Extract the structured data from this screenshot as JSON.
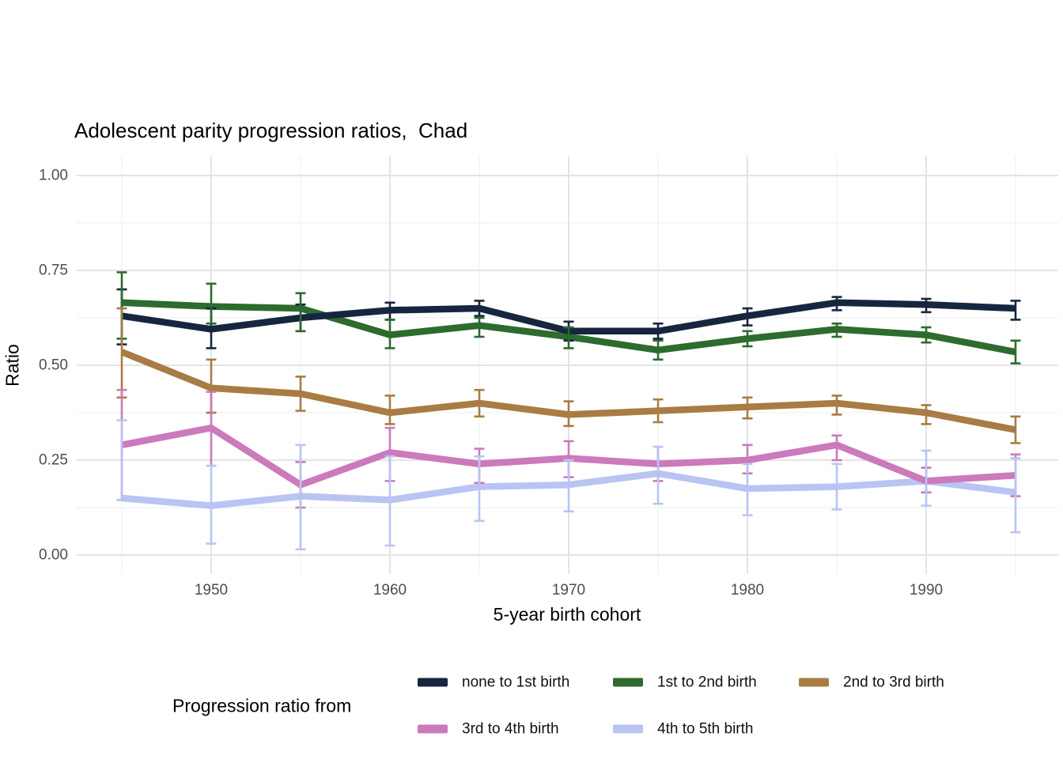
{
  "title": "Adolescent parity progression ratios,  Chad",
  "y_axis": {
    "label": "Ratio",
    "ticks": [
      {
        "label": "0.00",
        "value": 0
      },
      {
        "label": "0.25",
        "value": 0.25
      },
      {
        "label": "0.50",
        "value": 0.5
      },
      {
        "label": "0.75",
        "value": 0.75
      },
      {
        "label": "1.00",
        "value": 1
      }
    ]
  },
  "x_axis": {
    "label": "5-year birth cohort",
    "ticks": [
      {
        "label": "1950",
        "value": 1950
      },
      {
        "label": "1960",
        "value": 1960
      },
      {
        "label": "1970",
        "value": 1970
      },
      {
        "label": "1980",
        "value": 1980
      },
      {
        "label": "1990",
        "value": 1990
      }
    ]
  },
  "legend": {
    "title": "Progression ratio from"
  },
  "colors": {
    "none_to_1st": "#17263F",
    "first_to_2nd": "#2D6B2E",
    "second_to_3rd": "#A87C44",
    "third_to_4th": "#CB7ABB",
    "fourth_to_5th": "#B9C4F3",
    "grid_major": "#e4e4e4",
    "grid_minor": "#f0f0f0"
  },
  "chart_data": {
    "type": "line",
    "title": "Adolescent parity progression ratios,  Chad",
    "xlabel": "5-year birth cohort",
    "ylabel": "Ratio",
    "xlim": [
      1942.5,
      1997.5
    ],
    "ylim": [
      0,
      1
    ],
    "grid": true,
    "legend_position": "bottom",
    "error_bars": true,
    "x": [
      1945,
      1950,
      1955,
      1960,
      1965,
      1970,
      1975,
      1980,
      1985,
      1990,
      1995
    ],
    "x_minor_gridlines": [
      1945,
      1955,
      1965,
      1975,
      1985,
      1995
    ],
    "y_minor_gridlines": [
      0.125,
      0.375,
      0.625,
      0.875
    ],
    "series": [
      {
        "name": "none to 1st birth",
        "color": "#17263F",
        "values": [
          0.63,
          0.595,
          0.625,
          0.645,
          0.65,
          0.59,
          0.59,
          0.63,
          0.665,
          0.66,
          0.65
        ],
        "ci_low": [
          0.555,
          0.545,
          0.59,
          0.62,
          0.63,
          0.565,
          0.57,
          0.605,
          0.645,
          0.64,
          0.62
        ],
        "ci_high": [
          0.7,
          0.65,
          0.66,
          0.665,
          0.67,
          0.615,
          0.61,
          0.65,
          0.68,
          0.675,
          0.67
        ]
      },
      {
        "name": "1st to 2nd birth",
        "color": "#2D6B2E",
        "values": [
          0.665,
          0.655,
          0.65,
          0.58,
          0.605,
          0.575,
          0.54,
          0.57,
          0.595,
          0.58,
          0.535
        ],
        "ci_low": [
          0.57,
          0.61,
          0.59,
          0.545,
          0.575,
          0.545,
          0.515,
          0.55,
          0.575,
          0.56,
          0.505
        ],
        "ci_high": [
          0.745,
          0.715,
          0.69,
          0.62,
          0.625,
          0.6,
          0.565,
          0.59,
          0.61,
          0.6,
          0.565
        ]
      },
      {
        "name": "2nd to 3rd birth",
        "color": "#A87C44",
        "values": [
          0.535,
          0.44,
          0.425,
          0.375,
          0.4,
          0.37,
          0.38,
          0.39,
          0.4,
          0.375,
          0.33
        ],
        "ci_low": [
          0.415,
          0.375,
          0.38,
          0.345,
          0.365,
          0.34,
          0.35,
          0.36,
          0.37,
          0.345,
          0.295
        ],
        "ci_high": [
          0.65,
          0.515,
          0.47,
          0.42,
          0.435,
          0.405,
          0.41,
          0.415,
          0.42,
          0.395,
          0.365
        ]
      },
      {
        "name": "3rd to 4th birth",
        "color": "#CB7ABB",
        "values": [
          0.29,
          0.335,
          0.185,
          0.27,
          0.24,
          0.255,
          0.24,
          0.25,
          0.29,
          0.195,
          0.21
        ],
        "ci_low": [
          0.145,
          0.235,
          0.125,
          0.195,
          0.19,
          0.205,
          0.195,
          0.215,
          0.25,
          0.165,
          0.155
        ],
        "ci_high": [
          0.435,
          0.43,
          0.245,
          0.335,
          0.28,
          0.3,
          0.285,
          0.29,
          0.315,
          0.23,
          0.265
        ]
      },
      {
        "name": "4th to 5th birth",
        "color": "#B9C4F3",
        "values": [
          0.15,
          0.13,
          0.155,
          0.145,
          0.18,
          0.185,
          0.215,
          0.175,
          0.18,
          0.195,
          0.165
        ],
        "ci_low": [
          0.145,
          0.03,
          0.015,
          0.025,
          0.09,
          0.115,
          0.135,
          0.105,
          0.12,
          0.13,
          0.06
        ],
        "ci_high": [
          0.355,
          0.235,
          0.29,
          0.26,
          0.26,
          0.25,
          0.285,
          0.24,
          0.24,
          0.275,
          0.255
        ]
      }
    ]
  }
}
